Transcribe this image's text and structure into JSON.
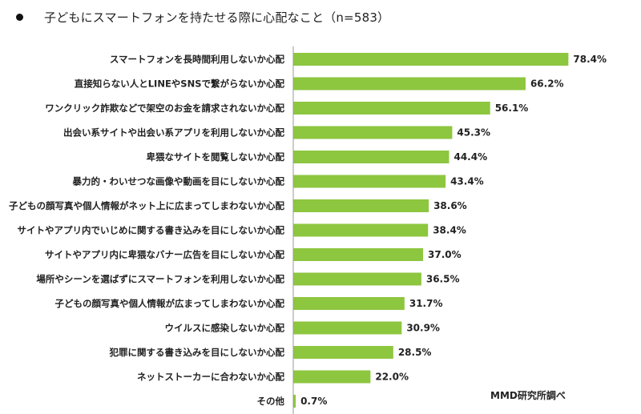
{
  "title": "子どもにスマートフォンを持たせる際に心配なこと（n=583）",
  "source": "MMD研究所調べ",
  "colors": {
    "bar": "#8dc63f",
    "axis": "#9a9a9a",
    "text": "#222222"
  },
  "chart_data": {
    "type": "bar",
    "orientation": "horizontal",
    "title": "子どもにスマートフォンを持たせる際に心配なこと（n=583）",
    "xlabel": "",
    "ylabel": "",
    "unit": "%",
    "xlim": [
      0,
      100
    ],
    "grid": false,
    "legend": "none",
    "categories": [
      "スマートフォンを長時間利用しないか心配",
      "直接知らない人とLINEやSNSで繋がらないか心配",
      "ワンクリック詐欺などで架空のお金を請求されないか心配",
      "出会い系サイトや出会い系アプリを利用しないか心配",
      "卑猥なサイトを閲覧しないか心配",
      "暴力的・わいせつな画像や動画を目にしないか心配",
      "子どもの顔写真や個人情報がネット上に広まってしまわないか心配",
      "サイトやアプリ内でいじめに関する書き込みを目にしないか心配",
      "サイトやアプリ内に卑猥なバナー広告を目にしないか心配",
      "場所やシーンを選ばずにスマートフォンを利用しないか心配",
      "子どもの顔写真や個人情報が広まってしまわないか心配",
      "ウイルスに感染しないか心配",
      "犯罪に関する書き込みを目にしないか心配",
      "ネットストーカーに合わないか心配",
      "その他"
    ],
    "values": [
      78.4,
      66.2,
      56.1,
      45.3,
      44.4,
      43.4,
      38.6,
      38.4,
      37.0,
      36.5,
      31.7,
      30.9,
      28.5,
      22.0,
      0.7
    ],
    "value_labels": [
      "78.4%",
      "66.2%",
      "56.1%",
      "45.3%",
      "44.4%",
      "43.4%",
      "38.6%",
      "38.4%",
      "37.0%",
      "36.5%",
      "31.7%",
      "30.9%",
      "28.5%",
      "22.0%",
      "0.7%"
    ]
  }
}
